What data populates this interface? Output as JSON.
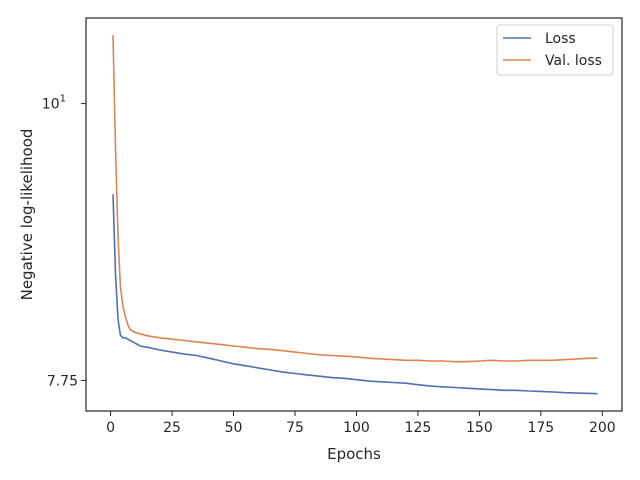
{
  "chart_data": {
    "type": "line",
    "xlabel": "Epochs",
    "ylabel": "Negative log-likelihood",
    "xlim": [
      -10,
      208
    ],
    "ylim": [
      7.535,
      10.82
    ],
    "y_scale": "log",
    "x_ticks": [
      0,
      25,
      50,
      75,
      100,
      125,
      150,
      175,
      200
    ],
    "x_tick_labels": [
      "0",
      "25",
      "50",
      "75",
      "100",
      "125",
      "150",
      "175",
      "200"
    ],
    "y_ticks": [
      7.75,
      10
    ],
    "y_tick_labels": [
      "7.75",
      "10^1"
    ],
    "grid": false,
    "legend_position": "top-right",
    "series": [
      {
        "name": "Loss",
        "color": "#4c72b0",
        "x": [
          1,
          2,
          3,
          4,
          5,
          6,
          7,
          8,
          10,
          12,
          15,
          20,
          25,
          30,
          35,
          40,
          45,
          50,
          55,
          60,
          65,
          70,
          75,
          80,
          85,
          90,
          95,
          100,
          105,
          110,
          115,
          120,
          125,
          130,
          135,
          140,
          145,
          150,
          155,
          160,
          165,
          170,
          175,
          180,
          185,
          190,
          195,
          198
        ],
        "values": [
          9.2,
          8.55,
          8.2,
          8.08,
          8.06,
          8.06,
          8.05,
          8.04,
          8.02,
          8.0,
          7.99,
          7.97,
          7.955,
          7.94,
          7.93,
          7.91,
          7.89,
          7.87,
          7.855,
          7.84,
          7.825,
          7.81,
          7.8,
          7.79,
          7.78,
          7.77,
          7.765,
          7.755,
          7.745,
          7.74,
          7.735,
          7.73,
          7.72,
          7.71,
          7.705,
          7.7,
          7.695,
          7.69,
          7.685,
          7.68,
          7.68,
          7.675,
          7.672,
          7.668,
          7.663,
          7.66,
          7.658,
          7.656
        ]
      },
      {
        "name": "Val. loss",
        "color": "#dd8452",
        "x": [
          1,
          2,
          3,
          4,
          5,
          6,
          7,
          8,
          10,
          12,
          15,
          20,
          25,
          30,
          35,
          40,
          45,
          50,
          55,
          60,
          65,
          70,
          75,
          80,
          85,
          90,
          95,
          100,
          105,
          110,
          115,
          120,
          125,
          130,
          135,
          140,
          145,
          150,
          155,
          160,
          165,
          170,
          175,
          180,
          185,
          190,
          195,
          198
        ],
        "values": [
          10.65,
          9.6,
          8.85,
          8.45,
          8.3,
          8.22,
          8.16,
          8.12,
          8.1,
          8.09,
          8.075,
          8.06,
          8.05,
          8.04,
          8.03,
          8.02,
          8.01,
          8.0,
          7.99,
          7.98,
          7.975,
          7.965,
          7.955,
          7.945,
          7.935,
          7.93,
          7.925,
          7.92,
          7.91,
          7.905,
          7.9,
          7.895,
          7.895,
          7.89,
          7.89,
          7.885,
          7.885,
          7.89,
          7.895,
          7.89,
          7.89,
          7.895,
          7.895,
          7.895,
          7.9,
          7.905,
          7.91,
          7.91
        ]
      }
    ]
  }
}
